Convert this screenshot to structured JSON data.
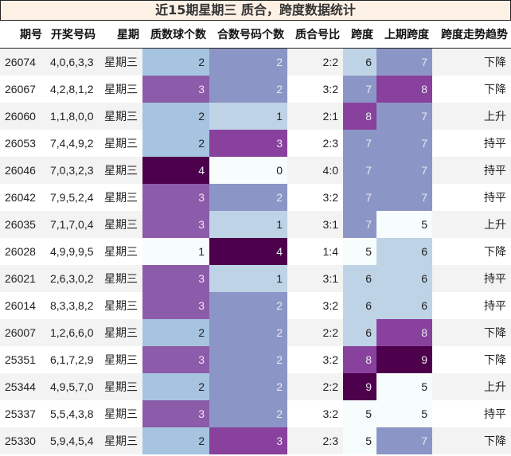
{
  "title": "近15期星期三 质合，跨度数据统计",
  "headers": [
    "期号",
    "开奖号码",
    "星期",
    "质数球个数",
    "合数号码个数",
    "质合号比",
    "跨度",
    "上期跨度",
    "跨度走势趋势"
  ],
  "colors": {
    "prime_count": {
      "1": "#f7fcfd",
      "2": "#a6c4e0",
      "3": "#8c5ba9",
      "4": "#4d004b"
    },
    "composite_count": {
      "0": "#f7fcfd",
      "1": "#bfd3e6",
      "2": "#8c96c6",
      "3": "#88419d",
      "4": "#4d004b"
    },
    "span": {
      "5": "#f7fcfd",
      "6": "#bfd3e6",
      "7": "#8c96c6",
      "8": "#88419d",
      "9": "#4d004b"
    }
  },
  "rows": [
    {
      "issue": "26074",
      "numbers": "4,0,6,3,3",
      "weekday": "星期三",
      "prime": "2",
      "composite": "2",
      "ratio": "2:2",
      "span": "6",
      "prev_span": "7",
      "trend": "下降"
    },
    {
      "issue": "26067",
      "numbers": "4,2,8,1,2",
      "weekday": "星期三",
      "prime": "3",
      "composite": "2",
      "ratio": "3:2",
      "span": "7",
      "prev_span": "8",
      "trend": "下降"
    },
    {
      "issue": "26060",
      "numbers": "1,1,8,0,0",
      "weekday": "星期三",
      "prime": "2",
      "composite": "1",
      "ratio": "2:1",
      "span": "8",
      "prev_span": "7",
      "trend": "上升"
    },
    {
      "issue": "26053",
      "numbers": "7,4,4,9,2",
      "weekday": "星期三",
      "prime": "2",
      "composite": "3",
      "ratio": "2:3",
      "span": "7",
      "prev_span": "7",
      "trend": "持平"
    },
    {
      "issue": "26046",
      "numbers": "7,0,3,2,3",
      "weekday": "星期三",
      "prime": "4",
      "composite": "0",
      "ratio": "4:0",
      "span": "7",
      "prev_span": "7",
      "trend": "持平"
    },
    {
      "issue": "26042",
      "numbers": "7,9,5,2,4",
      "weekday": "星期三",
      "prime": "3",
      "composite": "2",
      "ratio": "3:2",
      "span": "7",
      "prev_span": "7",
      "trend": "持平"
    },
    {
      "issue": "26035",
      "numbers": "7,1,7,0,4",
      "weekday": "星期三",
      "prime": "3",
      "composite": "1",
      "ratio": "3:1",
      "span": "7",
      "prev_span": "5",
      "trend": "上升"
    },
    {
      "issue": "26028",
      "numbers": "4,9,9,9,5",
      "weekday": "星期三",
      "prime": "1",
      "composite": "4",
      "ratio": "1:4",
      "span": "5",
      "prev_span": "6",
      "trend": "下降"
    },
    {
      "issue": "26021",
      "numbers": "2,6,3,0,2",
      "weekday": "星期三",
      "prime": "3",
      "composite": "1",
      "ratio": "3:1",
      "span": "6",
      "prev_span": "6",
      "trend": "持平"
    },
    {
      "issue": "26014",
      "numbers": "8,3,3,8,2",
      "weekday": "星期三",
      "prime": "3",
      "composite": "2",
      "ratio": "3:2",
      "span": "6",
      "prev_span": "6",
      "trend": "持平"
    },
    {
      "issue": "26007",
      "numbers": "1,2,6,6,0",
      "weekday": "星期三",
      "prime": "2",
      "composite": "2",
      "ratio": "2:2",
      "span": "6",
      "prev_span": "8",
      "trend": "下降"
    },
    {
      "issue": "25351",
      "numbers": "6,1,7,2,9",
      "weekday": "星期三",
      "prime": "3",
      "composite": "2",
      "ratio": "3:2",
      "span": "8",
      "prev_span": "9",
      "trend": "下降"
    },
    {
      "issue": "25344",
      "numbers": "4,9,5,7,0",
      "weekday": "星期三",
      "prime": "2",
      "composite": "2",
      "ratio": "2:2",
      "span": "9",
      "prev_span": "5",
      "trend": "上升"
    },
    {
      "issue": "25337",
      "numbers": "5,5,4,3,8",
      "weekday": "星期三",
      "prime": "3",
      "composite": "2",
      "ratio": "3:2",
      "span": "5",
      "prev_span": "5",
      "trend": "持平"
    },
    {
      "issue": "25330",
      "numbers": "5,9,4,5,4",
      "weekday": "星期三",
      "prime": "2",
      "composite": "3",
      "ratio": "2:3",
      "span": "5",
      "prev_span": "7",
      "trend": "下降"
    }
  ]
}
